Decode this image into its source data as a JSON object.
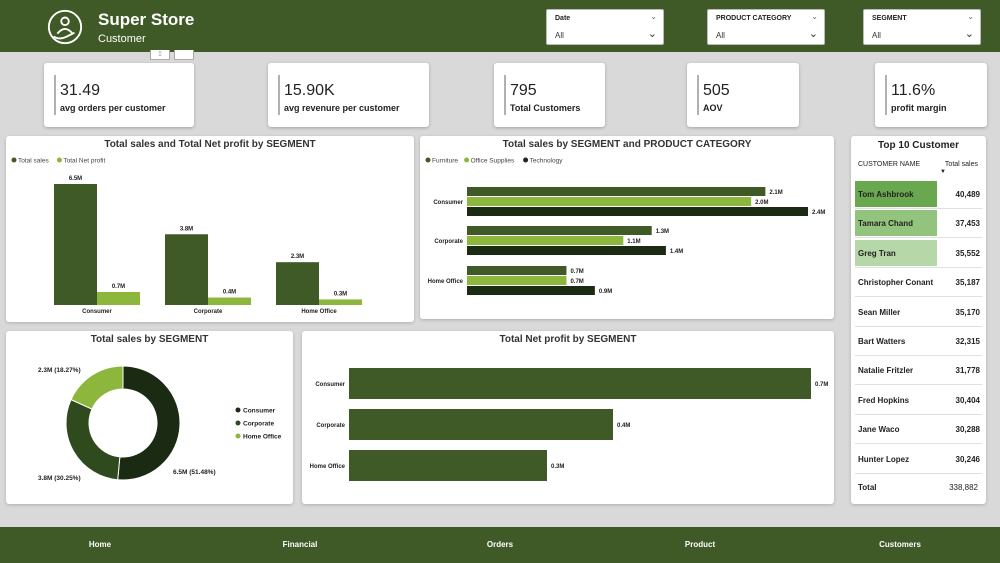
{
  "header": {
    "title": "Super Store",
    "subtitle": "Customer",
    "filters": [
      {
        "label": "Date",
        "value": "All"
      },
      {
        "label": "PRODUCT CATEGORY",
        "value": "All"
      },
      {
        "label": "SEGMENT",
        "value": "All"
      }
    ]
  },
  "kpis": [
    {
      "value": "31.49",
      "label": "avg orders per customer"
    },
    {
      "value": "15.90K",
      "label": "avg revenure per customer"
    },
    {
      "value": "795",
      "label": "Total Customers"
    },
    {
      "value": "505",
      "label": "AOV"
    },
    {
      "value": "11.6%",
      "label": "profit margin"
    }
  ],
  "chart_data": [
    {
      "type": "bar",
      "title": "Total sales and Total Net profit by SEGMENT",
      "categories": [
        "Consumer",
        "Corporate",
        "Home Office"
      ],
      "series": [
        {
          "name": "Total sales",
          "values": [
            6.5,
            3.8,
            2.3
          ],
          "labels": [
            "6.5M",
            "3.8M",
            "2.3M"
          ],
          "color": "#3f5a26"
        },
        {
          "name": "Total Net profit",
          "values": [
            0.7,
            0.4,
            0.3
          ],
          "labels": [
            "0.7M",
            "0.4M",
            "0.3M"
          ],
          "color": "#8cb63c"
        }
      ],
      "ylim": [
        0,
        6.5
      ],
      "legend": "top-left"
    },
    {
      "type": "bar",
      "orientation": "horizontal",
      "title": "Total sales by SEGMENT and PRODUCT CATEGORY",
      "categories": [
        "Consumer",
        "Corporate",
        "Home Office"
      ],
      "series": [
        {
          "name": "Furniture",
          "values": [
            2.1,
            1.3,
            0.7
          ],
          "labels": [
            "2.1M",
            "1.3M",
            "0.7M"
          ],
          "color": "#3f5a26"
        },
        {
          "name": "Office Supplies",
          "values": [
            2.0,
            1.1,
            0.7
          ],
          "labels": [
            "2.0M",
            "1.1M",
            "0.7M"
          ],
          "color": "#8cb63c"
        },
        {
          "name": "Technology",
          "values": [
            2.4,
            1.4,
            0.9
          ],
          "labels": [
            "2.4M",
            "1.4M",
            "0.9M"
          ],
          "color": "#1b2a12"
        }
      ],
      "xlim": [
        0,
        2.4
      ],
      "legend": "top-left"
    },
    {
      "type": "pie",
      "title": "Total sales by SEGMENT",
      "categories": [
        "Consumer",
        "Corporate",
        "Home Office"
      ],
      "values": [
        51.48,
        30.25,
        18.27
      ],
      "labels": [
        "6.5M (51.48%)",
        "3.8M (30.25%)",
        "2.3M (18.27%)"
      ],
      "colors": [
        "#1b2a12",
        "#2f4a1c",
        "#8cb63c"
      ],
      "legend": "right"
    },
    {
      "type": "bar",
      "orientation": "horizontal",
      "title": "Total Net profit by SEGMENT",
      "categories": [
        "Consumer",
        "Corporate",
        "Home Office"
      ],
      "values": [
        0.7,
        0.4,
        0.3
      ],
      "labels": [
        "0.7M",
        "0.4M",
        "0.3M"
      ],
      "color": "#3f5a26",
      "xlim": [
        0,
        0.7
      ]
    }
  ],
  "top_customers": {
    "title": "Top 10 Customer",
    "col_name": "CUSTOMER NAME",
    "col_value": "Total sales",
    "sort_icon": "sort-desc-icon",
    "rows": [
      {
        "name": "Tom Ashbrook",
        "value": "40,489",
        "highlight": "#6aa84f"
      },
      {
        "name": "Tamara Chand",
        "value": "37,453",
        "highlight": "#93c47d"
      },
      {
        "name": "Greg Tran",
        "value": "35,552",
        "highlight": "#b6d7a8"
      },
      {
        "name": "Christopher Conant",
        "value": "35,187",
        "highlight": ""
      },
      {
        "name": "Sean Miller",
        "value": "35,170",
        "highlight": ""
      },
      {
        "name": "Bart Watters",
        "value": "32,315",
        "highlight": ""
      },
      {
        "name": "Natalie Fritzler",
        "value": "31,778",
        "highlight": ""
      },
      {
        "name": "Fred Hopkins",
        "value": "30,404",
        "highlight": ""
      },
      {
        "name": "Jane Waco",
        "value": "30,288",
        "highlight": ""
      },
      {
        "name": "Hunter Lopez",
        "value": "30,246",
        "highlight": ""
      }
    ],
    "total_label": "Total",
    "total_value": "338,882"
  },
  "nav": [
    "Home",
    "Financial",
    "Orders",
    "Product",
    "Customers"
  ]
}
